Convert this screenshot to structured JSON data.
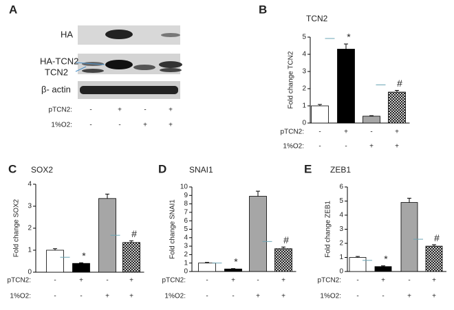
{
  "panel_labels": [
    "A",
    "B",
    "C",
    "D",
    "E"
  ],
  "blot": {
    "bands": [
      "HA",
      "HA-TCN2",
      "TCN2",
      "β- actin"
    ],
    "conditions": [
      {
        "name": "pTCN2:",
        "signs": [
          "-",
          "+",
          "-",
          "+"
        ]
      },
      {
        "name": "1%O2:",
        "signs": [
          "-",
          "-",
          "+",
          "+"
        ]
      }
    ]
  },
  "chart_data": [
    {
      "type": "bar",
      "title": "TCN2",
      "y_label": "Fold change TCN2",
      "values": [
        1.0,
        4.3,
        0.4,
        1.8
      ],
      "errors": [
        0.08,
        0.3,
        0.03,
        0.1
      ],
      "annotations": [
        null,
        "*",
        null,
        "#"
      ],
      "bar_fills": [
        "#ffffff",
        "#000000",
        "#a6a6a6",
        "#ffffff"
      ],
      "hatched": [
        false,
        false,
        false,
        true
      ],
      "ylim": [
        0,
        5
      ],
      "yticks": [
        0,
        1,
        2,
        3,
        4,
        5
      ],
      "conditions": [
        {
          "name": "pTCN2:",
          "signs": [
            "-",
            "+",
            "-",
            "+"
          ]
        },
        {
          "name": "1%O2:",
          "signs": [
            "-",
            "-",
            "+",
            "+"
          ]
        }
      ]
    },
    {
      "type": "bar",
      "title": "SOX2",
      "y_label": "Fold change SOX2",
      "values": [
        1.0,
        0.4,
        3.35,
        1.35
      ],
      "errors": [
        0.07,
        0.03,
        0.2,
        0.08
      ],
      "annotations": [
        null,
        "*",
        null,
        "#"
      ],
      "bar_fills": [
        "#ffffff",
        "#000000",
        "#a6a6a6",
        "#ffffff"
      ],
      "hatched": [
        false,
        false,
        false,
        true
      ],
      "ylim": [
        0,
        4
      ],
      "yticks": [
        0,
        1,
        2,
        3,
        4
      ],
      "conditions": [
        {
          "name": "pTCN2:",
          "signs": [
            "-",
            "+",
            "-",
            "+"
          ]
        },
        {
          "name": "1%O2:",
          "signs": [
            "-",
            "-",
            "+",
            "+"
          ]
        }
      ]
    },
    {
      "type": "bar",
      "title": "SNAI1",
      "y_label": "Fold change SNAI1",
      "values": [
        1.0,
        0.3,
        8.9,
        2.7
      ],
      "errors": [
        0.08,
        0.05,
        0.6,
        0.2
      ],
      "annotations": [
        null,
        "*",
        null,
        "#"
      ],
      "bar_fills": [
        "#ffffff",
        "#000000",
        "#a6a6a6",
        "#ffffff"
      ],
      "hatched": [
        false,
        false,
        false,
        true
      ],
      "ylim": [
        0,
        10
      ],
      "yticks": [
        0,
        1,
        2,
        3,
        4,
        5,
        6,
        7,
        8,
        9,
        10
      ],
      "conditions": [
        {
          "name": "pTCN2:",
          "signs": [
            "-",
            "+",
            "-",
            "+"
          ]
        },
        {
          "name": "1%O2:",
          "signs": [
            "-",
            "-",
            "+",
            "+"
          ]
        }
      ]
    },
    {
      "type": "bar",
      "title": "ZEB1",
      "y_label": "Fold change ZEB1",
      "values": [
        1.0,
        0.35,
        4.9,
        1.8
      ],
      "errors": [
        0.07,
        0.05,
        0.3,
        0.1
      ],
      "annotations": [
        null,
        "*",
        null,
        "#"
      ],
      "bar_fills": [
        "#ffffff",
        "#000000",
        "#a6a6a6",
        "#ffffff"
      ],
      "hatched": [
        false,
        false,
        false,
        true
      ],
      "ylim": [
        0,
        6
      ],
      "yticks": [
        0,
        1,
        2,
        3,
        4,
        5,
        6
      ],
      "conditions": [
        {
          "name": "pTCN2:",
          "signs": [
            "-",
            "+",
            "-",
            "+"
          ]
        },
        {
          "name": "1%O2:",
          "signs": [
            "-",
            "-",
            "+",
            "+"
          ]
        }
      ]
    }
  ]
}
